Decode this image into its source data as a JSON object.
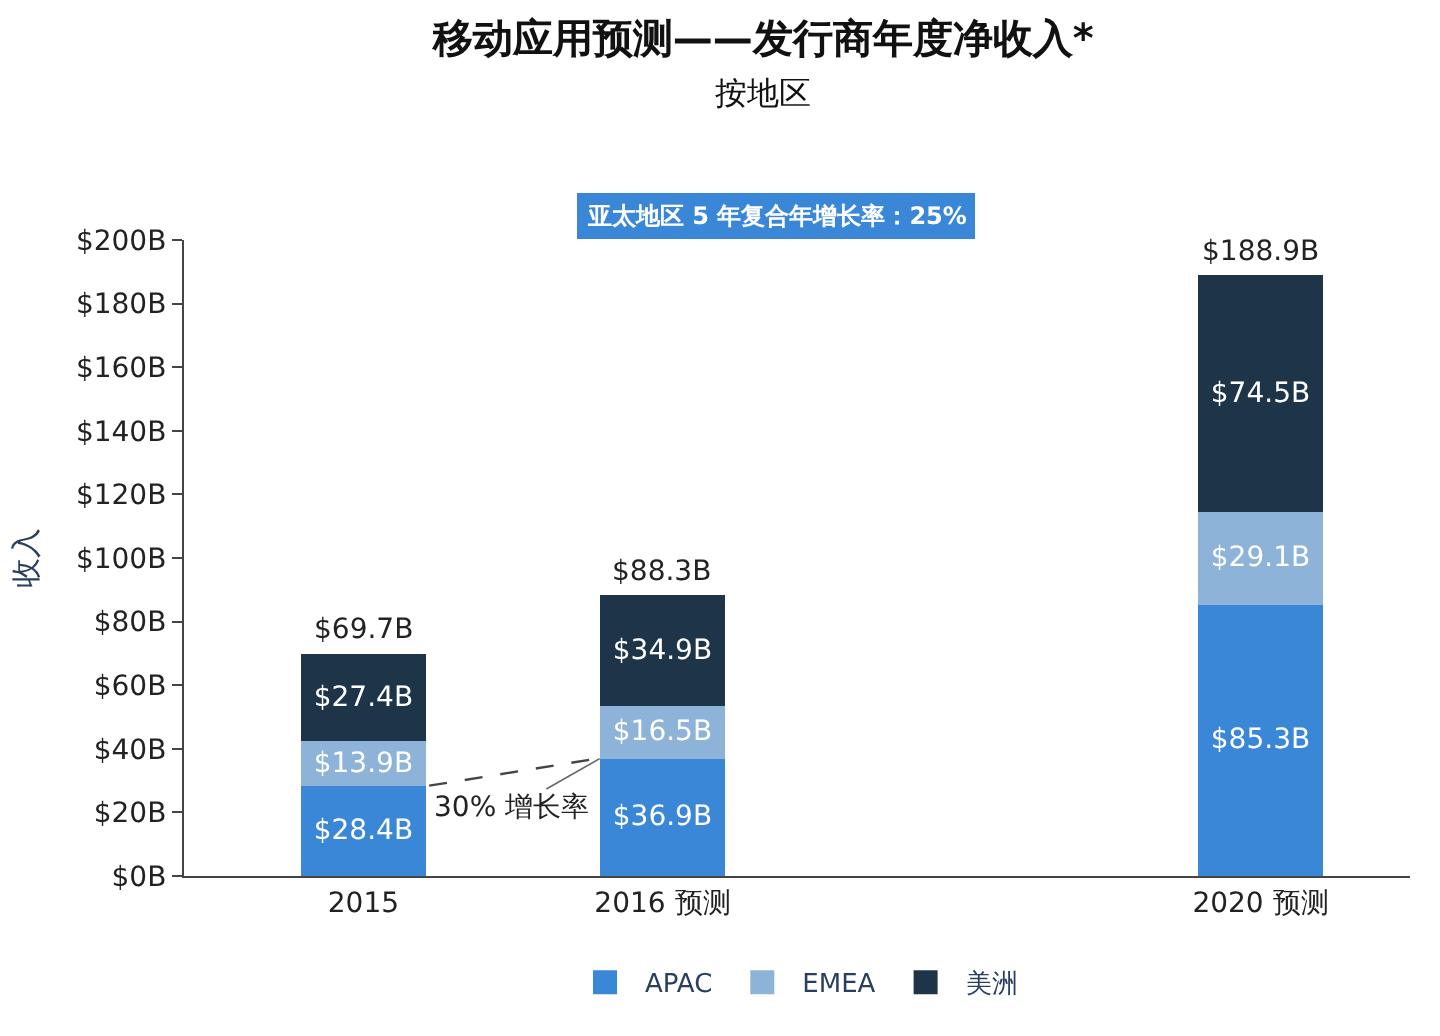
{
  "chart_data": {
    "type": "bar",
    "stacked": true,
    "title": "移动应用预测——发行商年度净收入*",
    "subtitle": "按地区",
    "ylabel": "收入",
    "categories": [
      "2015",
      "2016 预测",
      null,
      "2020 预测"
    ],
    "series": [
      {
        "name": "APAC",
        "color": "#3a87d8",
        "values": [
          28.4,
          36.9,
          null,
          85.3
        ],
        "value_labels": [
          "$28.4B",
          "$36.9B",
          null,
          "$85.3B"
        ]
      },
      {
        "name": "EMEA",
        "color": "#8db3d9",
        "values": [
          13.9,
          16.5,
          null,
          29.1
        ],
        "value_labels": [
          "$13.9B",
          "$16.5B",
          null,
          "$29.1B"
        ]
      },
      {
        "name": "美洲",
        "color": "#1e3448",
        "values": [
          27.4,
          34.9,
          null,
          74.5
        ],
        "value_labels": [
          "$27.4B",
          "$34.9B",
          null,
          "$74.5B"
        ]
      }
    ],
    "totals": [
      "$69.7B",
      "$88.3B",
      null,
      "$188.9B"
    ],
    "ylim": [
      0,
      200
    ],
    "yticks": [
      {
        "value": 0,
        "label": "$0B"
      },
      {
        "value": 20,
        "label": "$20B"
      },
      {
        "value": 40,
        "label": "$40B"
      },
      {
        "value": 60,
        "label": "$60B"
      },
      {
        "value": 80,
        "label": "$80B"
      },
      {
        "value": 100,
        "label": "$100B"
      },
      {
        "value": 120,
        "label": "$120B"
      },
      {
        "value": 140,
        "label": "$140B"
      },
      {
        "value": 160,
        "label": "$160B"
      },
      {
        "value": 180,
        "label": "$180B"
      },
      {
        "value": 200,
        "label": "$200B"
      }
    ],
    "annotations": [
      "亚太地区 5 年复合年增长率：25%",
      {
        "text": "30% 增长率",
        "x": "2016 预测",
        "y": 36.9
      }
    ],
    "legend": "bottom"
  }
}
